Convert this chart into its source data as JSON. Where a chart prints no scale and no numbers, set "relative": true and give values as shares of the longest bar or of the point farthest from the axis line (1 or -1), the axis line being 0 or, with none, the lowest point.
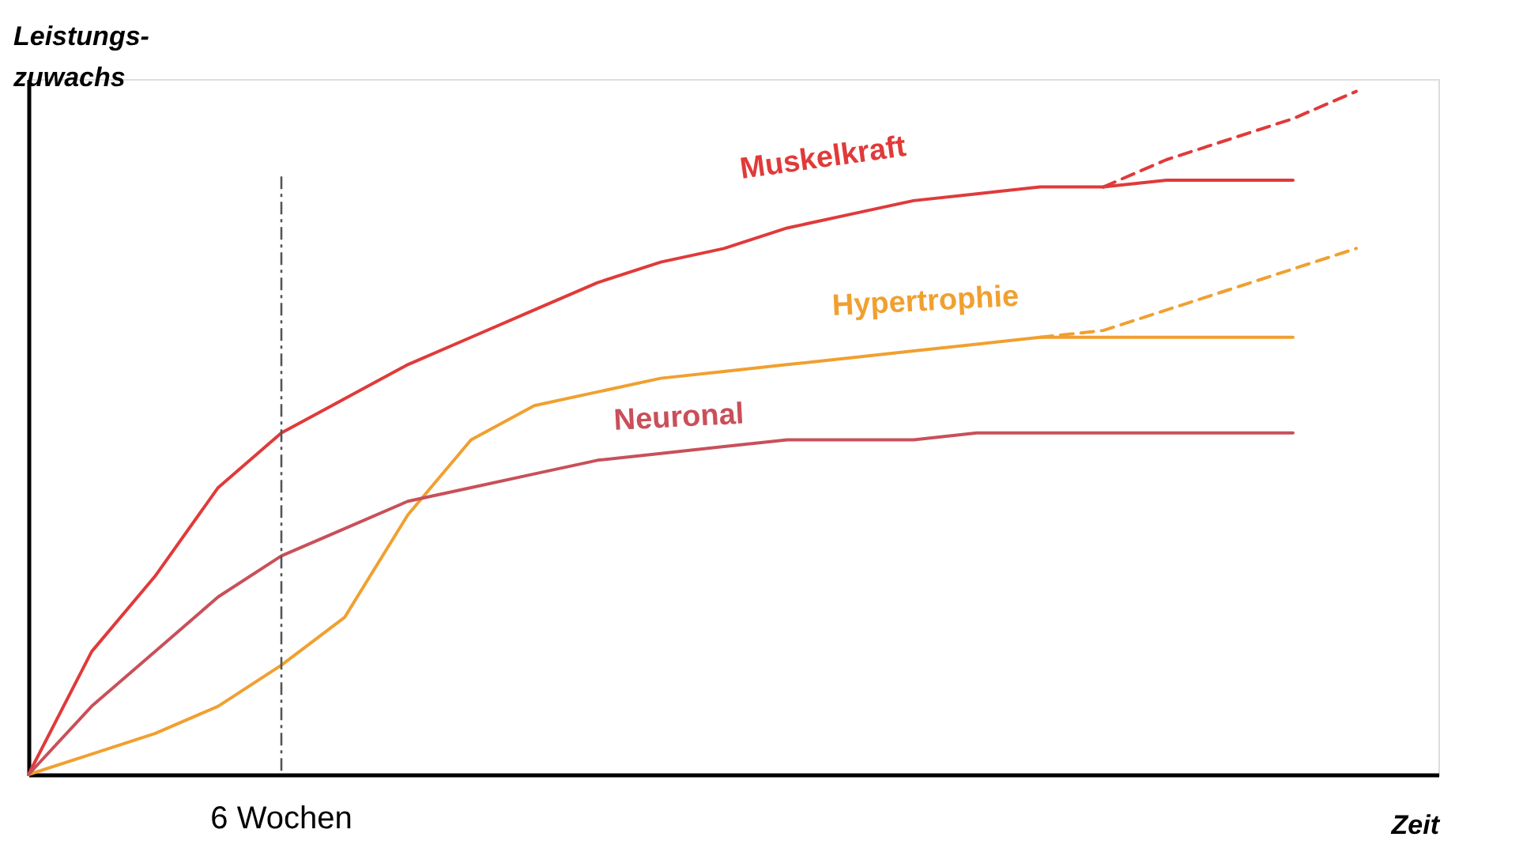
{
  "chart_data": {
    "type": "line",
    "relative": true,
    "tick_labels": false,
    "grid": false,
    "xlabel": "Zeit",
    "ylabel": "Leistungs-zuwachs",
    "categories": [
      null,
      null,
      null,
      null,
      null,
      null,
      null,
      null,
      null,
      null,
      null,
      null,
      null,
      null,
      null,
      null,
      null,
      null,
      null,
      null,
      null,
      null
    ],
    "series": [
      {
        "name": "Muskelkraft",
        "color": "#e03a3a",
        "line_style": "solid",
        "values": [
          0,
          0.18,
          0.29,
          0.42,
          0.5,
          0.55,
          0.6,
          0.64,
          0.68,
          0.72,
          0.75,
          0.77,
          0.8,
          0.82,
          0.84,
          0.85,
          0.86,
          0.86,
          0.87,
          0.87,
          0.87,
          null
        ]
      },
      {
        "color": "#e03a3a",
        "line_style": "dashed",
        "values": [
          null,
          null,
          null,
          null,
          null,
          null,
          null,
          null,
          null,
          null,
          null,
          null,
          null,
          null,
          null,
          null,
          null,
          0.86,
          0.9,
          0.93,
          0.96,
          1.0
        ]
      },
      {
        "name": "Hypertrophie",
        "color": "#f0a030",
        "line_style": "solid",
        "values": [
          0,
          0.03,
          0.06,
          0.1,
          0.16,
          0.23,
          0.38,
          0.49,
          0.54,
          0.56,
          0.58,
          0.59,
          0.6,
          0.61,
          0.62,
          0.63,
          0.64,
          0.64,
          0.64,
          0.64,
          0.64,
          null
        ]
      },
      {
        "color": "#f0a030",
        "line_style": "dashed",
        "values": [
          null,
          null,
          null,
          null,
          null,
          null,
          null,
          null,
          null,
          null,
          null,
          null,
          null,
          null,
          null,
          null,
          0.64,
          0.65,
          0.68,
          0.71,
          0.74,
          0.77
        ]
      },
      {
        "name": "Neuronal",
        "color": "#c8505a",
        "line_style": "solid",
        "values": [
          0,
          0.1,
          0.18,
          0.26,
          0.32,
          0.36,
          0.4,
          0.42,
          0.44,
          0.46,
          0.47,
          0.48,
          0.49,
          0.49,
          0.49,
          0.5,
          0.5,
          0.5,
          0.5,
          0.5,
          0.5,
          null
        ]
      }
    ],
    "annotations": [
      "6 Wochen"
    ]
  }
}
